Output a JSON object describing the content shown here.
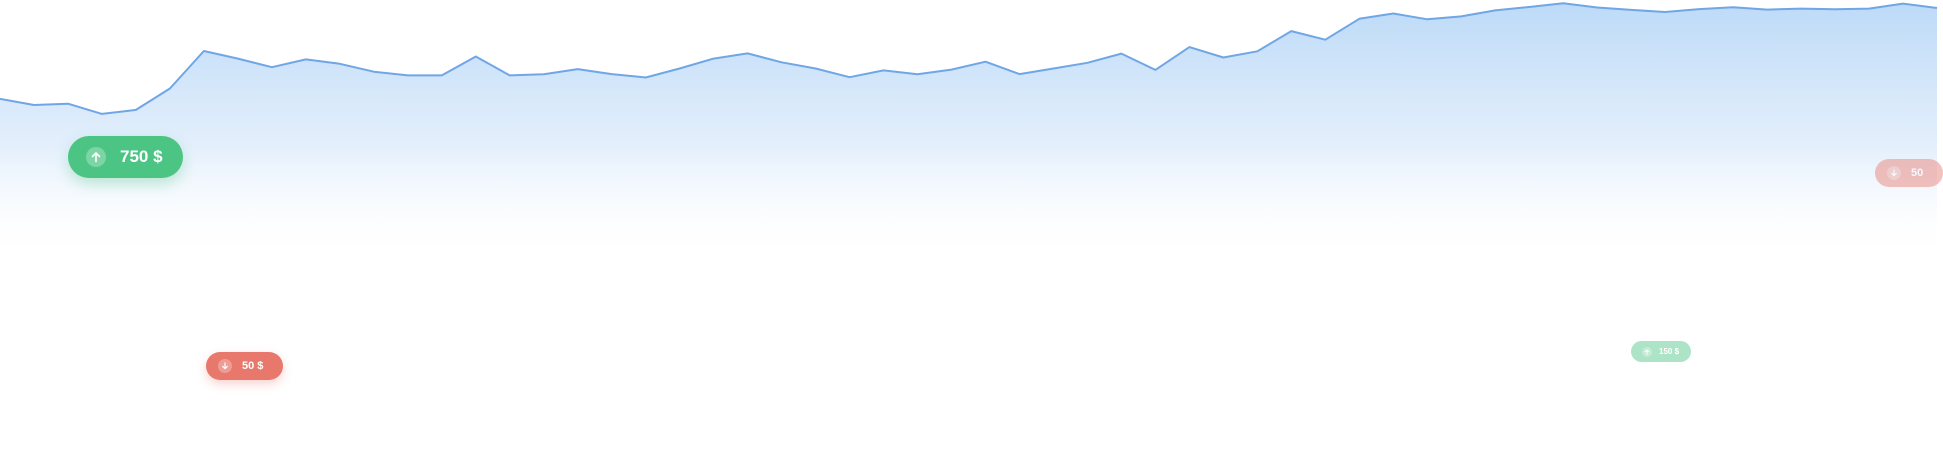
{
  "colors": {
    "line": "#6fa6e6",
    "area_top": "#b9d8f7",
    "area_bottom": "#ffffff",
    "up": "#4cc584",
    "down": "#e8786c"
  },
  "chart_data": {
    "type": "area",
    "title": "",
    "xlabel": "",
    "ylabel": "",
    "grid": false,
    "x": [
      0,
      1,
      2,
      3,
      4,
      5,
      6,
      7,
      8,
      9,
      10,
      11,
      12,
      13,
      14,
      15,
      16,
      17,
      18,
      19,
      20,
      21,
      22,
      23,
      24,
      25,
      26,
      27,
      28,
      29,
      30,
      31,
      32,
      33,
      34,
      35,
      36,
      37,
      38,
      39,
      40,
      41,
      42,
      43,
      44,
      45,
      46,
      47,
      48,
      49,
      50,
      51,
      52,
      53,
      54,
      55,
      56,
      57
    ],
    "xlim": [
      0,
      56.5
    ],
    "ylim": [
      0,
      100
    ],
    "series": [
      {
        "values": [
          63,
          60.7,
          61.2,
          57.3,
          58.8,
          67,
          81.3,
          78.4,
          75.1,
          78.1,
          76.4,
          73.4,
          72,
          72,
          79.2,
          72,
          72.4,
          74.4,
          72.5,
          71.2,
          74.6,
          78.4,
          80.4,
          77,
          74.6,
          71.3,
          73.9,
          72.4,
          74.2,
          77.2,
          72.5,
          74.6,
          76.8,
          80.3,
          74.1,
          82.8,
          78.8,
          81.2,
          88.9,
          85.6,
          93.6,
          95.6,
          93.4,
          94.5,
          96.8,
          98.1,
          99.5,
          97.9,
          97,
          96.2,
          97.3,
          98,
          97.1,
          97.5,
          97.2,
          97.5,
          99.4,
          97.7
        ]
      }
    ]
  },
  "badges": [
    {
      "direction": "up",
      "text": "750 $",
      "color": "#4cc584"
    },
    {
      "direction": "down",
      "text": "50 $",
      "color": "#e8786c"
    },
    {
      "direction": "up",
      "text": "150 $",
      "color": "#4cc584"
    },
    {
      "direction": "down",
      "text": "50",
      "color": "#e8786c"
    }
  ]
}
